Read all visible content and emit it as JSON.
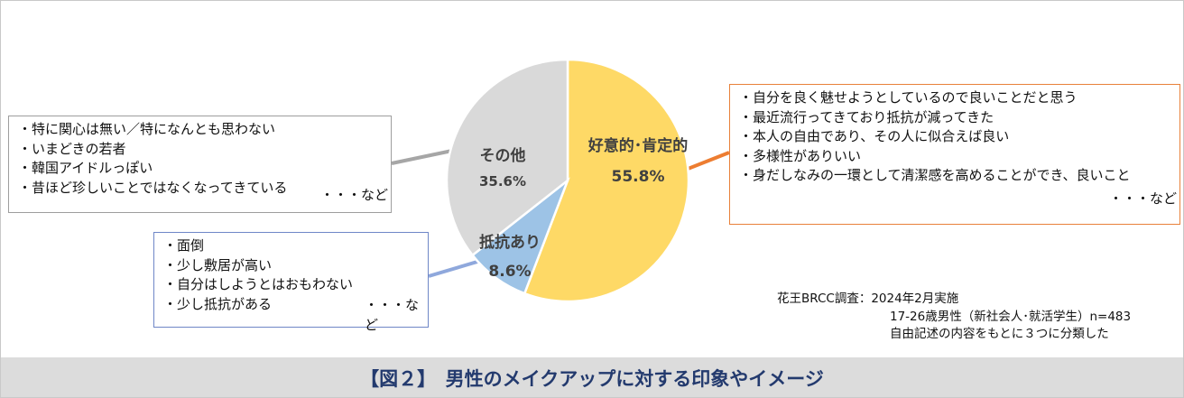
{
  "chart_data": {
    "type": "pie",
    "start_angle_deg": 0,
    "direction": "clockwise",
    "slices": [
      {
        "label": "好意的･肯定的",
        "value": 55.8,
        "value_label": "55.8%",
        "color": "#fed966"
      },
      {
        "label": "抵抗あり",
        "value": 8.6,
        "value_label": "8.6%",
        "color": "#9dc3e6"
      },
      {
        "label": "その他",
        "value": 35.6,
        "value_label": "35.6%",
        "color": "#d9d9d9"
      }
    ]
  },
  "callouts": {
    "other": {
      "items": [
        "・特に関心は無い／特になんとも思わない",
        "・いまどきの若者",
        "・韓国アイドルっぽい",
        "・昔ほど珍しいことではなくなってきている"
      ],
      "etc": "・・・など",
      "border_color": "#9e9e9e",
      "leader_color": "#a6a6a6"
    },
    "resist": {
      "items": [
        "・面倒",
        "・少し敷居が高い",
        "・自分はしようとはおもわない",
        "・少し抵抗がある"
      ],
      "etc": "・・・など",
      "border_color": "#6f87c7",
      "leader_color": "#8fa8dc"
    },
    "positive": {
      "items": [
        "・自分を良く魅せようとしているので良いことだと思う",
        "・最近流行ってきており抵抗が減ってきた",
        "・本人の自由であり、その人に似合えば良い",
        "・多様性がありいい",
        "・身だしなみの一環として清潔感を高めることができ、良いこと"
      ],
      "etc": "・・・など",
      "border_color": "#e8813a",
      "leader_color": "#ed7d31"
    }
  },
  "survey": {
    "line1": "花王BRCC調査：2024年2月実施",
    "line2": "17-26歳男性（新社会人･就活学生）n=483",
    "line3": "自由記述の内容をもとに３つに分類した"
  },
  "caption": "【図２】　男性のメイクアップに対する印象やイメージ"
}
